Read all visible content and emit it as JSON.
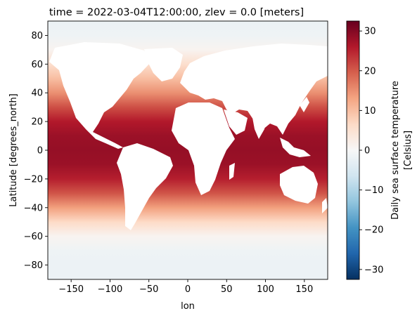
{
  "chart_data": {
    "type": "heatmap",
    "title": "time = 2022-03-04T12:00:00, zlev = 0.0 [meters]",
    "xlabel": "lon",
    "ylabel": "Latitude [degrees_north]",
    "xlim": [
      -180,
      180
    ],
    "ylim": [
      -90,
      90
    ],
    "x_ticks": [
      -150,
      -100,
      -50,
      0,
      50,
      100,
      150
    ],
    "x_tick_labels": [
      "−150",
      "−100",
      "−50",
      "0",
      "50",
      "100",
      "150"
    ],
    "y_ticks": [
      -80,
      -60,
      -40,
      -20,
      0,
      20,
      40,
      60,
      80
    ],
    "y_tick_labels": [
      "−80",
      "−60",
      "−40",
      "−20",
      "0",
      "20",
      "40",
      "60",
      "80"
    ],
    "colorbar": {
      "label_line1": "Daily sea surface temperature",
      "label_line2": "[Celsius]",
      "range": [
        -32.5,
        32.5
      ],
      "ticks": [
        -30,
        -20,
        -10,
        0,
        10,
        20,
        30
      ],
      "tick_labels": [
        "−30",
        "−20",
        "−10",
        "0",
        "10",
        "20",
        "30"
      ],
      "colormap": "RdBu_r",
      "colormap_stops": [
        "#053061",
        "#2166ac",
        "#4393c3",
        "#92c5de",
        "#d1e5f0",
        "#f7f7f7",
        "#fddbc7",
        "#f4a582",
        "#d6604d",
        "#b2182b",
        "#67001f"
      ]
    },
    "zonal_sst_profile": {
      "latitude": [
        -90,
        -80,
        -70,
        -60,
        -50,
        -40,
        -30,
        -20,
        -10,
        0,
        10,
        20,
        30,
        40,
        50,
        60,
        70,
        80,
        90
      ],
      "sst_celsius": [
        -1.8,
        -1.8,
        -1.5,
        1.0,
        6.5,
        13.5,
        20.5,
        25.5,
        28.0,
        28.5,
        28.0,
        26.0,
        21.0,
        15.0,
        10.0,
        5.5,
        1.0,
        -1.5,
        -1.8
      ]
    },
    "land_color": "#ffffff"
  }
}
